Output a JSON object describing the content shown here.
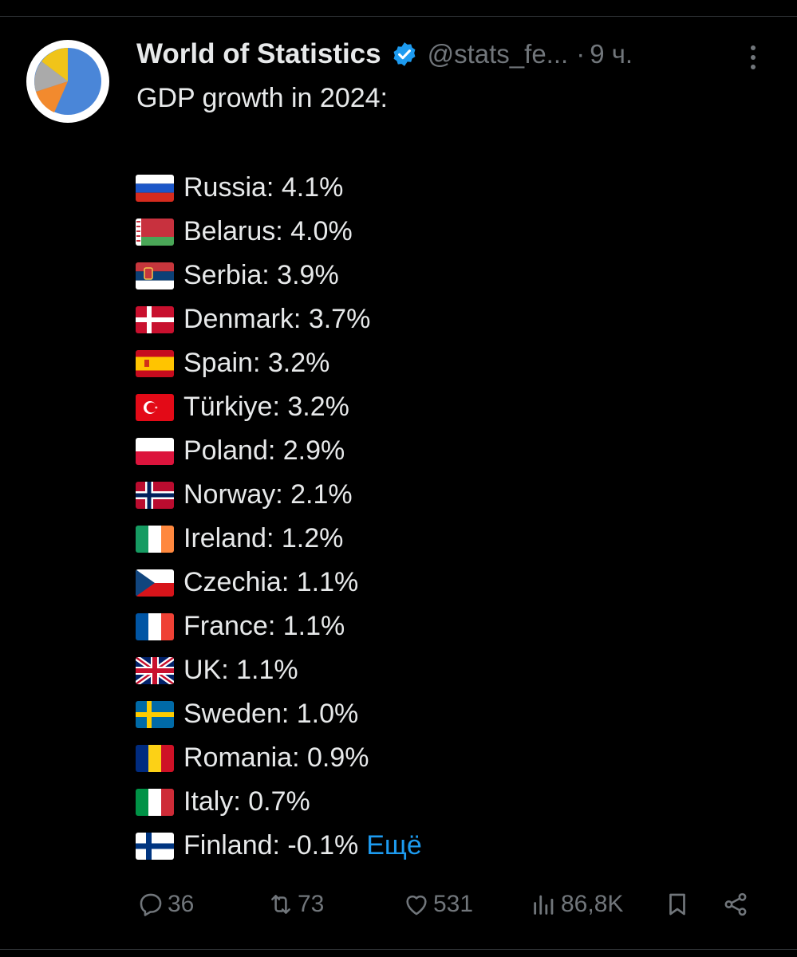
{
  "author": {
    "name": "World of Statistics",
    "handle": "@stats_fe...",
    "separator": "·",
    "time": "9 ч.",
    "verified_color": "#1d9bf0"
  },
  "tweet": {
    "intro": "GDP growth in 2024:",
    "items": [
      {
        "flag": "russia-flag",
        "text": "Russia: 4.1%"
      },
      {
        "flag": "belarus-flag",
        "text": "Belarus: 4.0%"
      },
      {
        "flag": "serbia-flag",
        "text": "Serbia: 3.9%"
      },
      {
        "flag": "denmark-flag",
        "text": "Denmark: 3.7%"
      },
      {
        "flag": "spain-flag",
        "text": "Spain: 3.2%"
      },
      {
        "flag": "turkiye-flag",
        "text": "Türkiye: 3.2%"
      },
      {
        "flag": "poland-flag",
        "text": "Poland: 2.9%"
      },
      {
        "flag": "norway-flag",
        "text": "Norway: 2.1%"
      },
      {
        "flag": "ireland-flag",
        "text": "Ireland: 1.2%"
      },
      {
        "flag": "czechia-flag",
        "text": "Czechia: 1.1%"
      },
      {
        "flag": "france-flag",
        "text": "France: 1.1%"
      },
      {
        "flag": "uk-flag",
        "text": "UK: 1.1%"
      },
      {
        "flag": "sweden-flag",
        "text": "Sweden: 1.0%"
      },
      {
        "flag": "romania-flag",
        "text": "Romania: 0.9%"
      },
      {
        "flag": "italy-flag",
        "text": "Italy: 0.7%"
      },
      {
        "flag": "finland-flag",
        "text": "Finland: -0.1%"
      }
    ],
    "show_more": "Ещё",
    "link_color": "#1d9bf0"
  },
  "actions": {
    "replies": "36",
    "retweets": "73",
    "likes": "531",
    "views": "86,8K"
  },
  "colors": {
    "background": "#000000",
    "text": "#e7e9ea",
    "muted": "#71767b"
  }
}
